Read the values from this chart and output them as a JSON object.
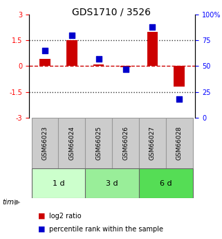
{
  "title": "GDS1710 / 3526",
  "samples": [
    "GSM66023",
    "GSM66024",
    "GSM66025",
    "GSM66026",
    "GSM66027",
    "GSM66028"
  ],
  "log2_ratio": [
    0.4,
    1.5,
    0.08,
    -0.08,
    2.0,
    -1.2
  ],
  "percentile_rank": [
    65,
    80,
    57,
    47,
    88,
    18
  ],
  "groups": [
    {
      "label": "1 d",
      "samples": [
        0,
        1
      ],
      "color": "#ccffcc"
    },
    {
      "label": "3 d",
      "samples": [
        2,
        3
      ],
      "color": "#99ee99"
    },
    {
      "label": "6 d",
      "samples": [
        4,
        5
      ],
      "color": "#55dd55"
    }
  ],
  "ylim_left": [
    -3,
    3
  ],
  "ylim_right": [
    0,
    100
  ],
  "yticks_left": [
    -3,
    -1.5,
    0,
    1.5,
    3
  ],
  "yticks_right": [
    0,
    25,
    50,
    75,
    100
  ],
  "yticklabels_left": [
    "-3",
    "-1.5",
    "0",
    "1.5",
    "3"
  ],
  "yticklabels_right": [
    "0",
    "25",
    "50",
    "75",
    "100%"
  ],
  "bar_color": "#cc0000",
  "dot_color": "#0000cc",
  "zero_line_color": "#cc0000",
  "hline_color": "#333333",
  "hline_positions": [
    -1.5,
    1.5
  ],
  "legend_bar_label": "log2 ratio",
  "legend_dot_label": "percentile rank within the sample",
  "sample_box_color": "#cccccc",
  "bar_width": 0.4
}
